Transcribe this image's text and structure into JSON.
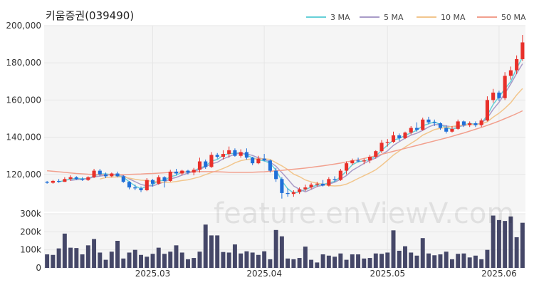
{
  "title": "키움증권(039490)",
  "watermark": "feature.enViewV.com",
  "colors": {
    "up": "#e8302a",
    "down": "#1f6fd8",
    "volume": "#454768",
    "ma3": "#66d0d8",
    "ma5": "#a99bc8",
    "ma10": "#f2c68d",
    "ma50": "#f2a08e"
  },
  "chart_data": {
    "type": "candlestick",
    "legend_position": "top-right",
    "price_axis": {
      "ylim": [
        100000,
        200000
      ],
      "ticks": [
        120000,
        140000,
        160000,
        180000,
        200000
      ],
      "tick_labels": [
        "120,000",
        "140,000",
        "160,000",
        "180,000",
        "200,000"
      ]
    },
    "volume_axis": {
      "ylim": [
        0,
        300000
      ],
      "ticks": [
        0,
        100000,
        200000,
        300000
      ],
      "tick_labels": [
        "0",
        "100k",
        "200k",
        "300k"
      ]
    },
    "x_ticks": [
      {
        "index": 18,
        "label": "2025.03"
      },
      {
        "index": 37,
        "label": "2025.04"
      },
      {
        "index": 58,
        "label": "2025.05"
      },
      {
        "index": 77,
        "label": "2025.06"
      }
    ],
    "legend": [
      {
        "label": "3 MA",
        "color": "#66d0d8",
        "key": "ma3"
      },
      {
        "label": "5 MA",
        "color": "#a99bc8",
        "key": "ma5"
      },
      {
        "label": "10 MA",
        "color": "#f2c68d",
        "key": "ma10"
      },
      {
        "label": "50 MA",
        "color": "#f2a08e",
        "key": "ma50"
      }
    ],
    "candles": [
      [
        116000,
        116500,
        115000,
        115500
      ],
      [
        115500,
        117000,
        115000,
        116500
      ],
      [
        116500,
        117500,
        115500,
        116000
      ],
      [
        116000,
        118500,
        116000,
        117500
      ],
      [
        117500,
        119500,
        116500,
        118500
      ],
      [
        118500,
        119000,
        117000,
        117500
      ],
      [
        117500,
        118500,
        116500,
        117000
      ],
      [
        117000,
        119000,
        116500,
        118500
      ],
      [
        118500,
        123000,
        118000,
        122000
      ],
      [
        122000,
        123000,
        119000,
        120000
      ],
      [
        120000,
        121000,
        118000,
        119000
      ],
      [
        119000,
        121000,
        118500,
        120500
      ],
      [
        120500,
        121500,
        118500,
        119000
      ],
      [
        119000,
        119500,
        115500,
        116000
      ],
      [
        116000,
        116500,
        112000,
        113000
      ],
      [
        113000,
        114500,
        111500,
        112500
      ],
      [
        112500,
        113500,
        110500,
        111500
      ],
      [
        111500,
        118000,
        111000,
        117000
      ],
      [
        117000,
        117500,
        113500,
        115000
      ],
      [
        115000,
        119500,
        114500,
        118500
      ],
      [
        118500,
        119000,
        113000,
        116500
      ],
      [
        116500,
        122500,
        116000,
        121500
      ],
      [
        121500,
        123000,
        119500,
        120500
      ],
      [
        120500,
        122500,
        119500,
        122000
      ],
      [
        122000,
        122500,
        120000,
        121000
      ],
      [
        121000,
        123500,
        119500,
        122500
      ],
      [
        122500,
        129000,
        121000,
        127000
      ],
      [
        127000,
        128000,
        123000,
        124000
      ],
      [
        124000,
        132000,
        123500,
        130500
      ],
      [
        130500,
        131500,
        128500,
        129500
      ],
      [
        129500,
        133000,
        128000,
        131000
      ],
      [
        131000,
        135000,
        129000,
        133000
      ],
      [
        133000,
        134000,
        129500,
        130000
      ],
      [
        130000,
        133500,
        129000,
        132000
      ],
      [
        132000,
        134000,
        128000,
        129000
      ],
      [
        129000,
        129500,
        125000,
        126000
      ],
      [
        126000,
        130000,
        125500,
        128500
      ],
      [
        128500,
        131000,
        127000,
        127500
      ],
      [
        127500,
        128000,
        121000,
        122000
      ],
      [
        122000,
        123500,
        116000,
        117500
      ],
      [
        117500,
        118500,
        107000,
        110000
      ],
      [
        110000,
        112500,
        108000,
        109500
      ],
      [
        109500,
        111500,
        108000,
        110500
      ],
      [
        110500,
        113000,
        109500,
        112000
      ],
      [
        112000,
        114500,
        111000,
        113000
      ],
      [
        113000,
        115500,
        112000,
        114500
      ],
      [
        114500,
        116000,
        113500,
        115000
      ],
      [
        115000,
        117000,
        113500,
        114000
      ],
      [
        114000,
        118500,
        113500,
        117500
      ],
      [
        117500,
        119000,
        116000,
        117000
      ],
      [
        117000,
        123000,
        116500,
        122000
      ],
      [
        122000,
        127000,
        120000,
        126000
      ],
      [
        126000,
        128500,
        125000,
        127500
      ],
      [
        127500,
        129000,
        126500,
        127000
      ],
      [
        127000,
        128500,
        125500,
        127500
      ],
      [
        127500,
        130500,
        126000,
        129500
      ],
      [
        129500,
        133000,
        128500,
        132500
      ],
      [
        132500,
        138500,
        131500,
        137000
      ],
      [
        137000,
        139000,
        135000,
        137500
      ],
      [
        137500,
        143000,
        137000,
        141000
      ],
      [
        141000,
        142000,
        138000,
        139500
      ],
      [
        139500,
        143000,
        139000,
        142500
      ],
      [
        142500,
        146000,
        141500,
        145000
      ],
      [
        145000,
        148000,
        143000,
        144000
      ],
      [
        144000,
        150500,
        143500,
        149500
      ],
      [
        149500,
        151000,
        147000,
        148000
      ],
      [
        148000,
        149500,
        146000,
        147500
      ],
      [
        147500,
        148000,
        144000,
        145000
      ],
      [
        145000,
        146500,
        142000,
        143000
      ],
      [
        143000,
        146000,
        142500,
        144500
      ],
      [
        144500,
        149500,
        144000,
        148500
      ],
      [
        148500,
        149000,
        145500,
        146500
      ],
      [
        146500,
        148500,
        145500,
        147500
      ],
      [
        147500,
        148500,
        145500,
        146500
      ],
      [
        146500,
        150000,
        145500,
        149000
      ],
      [
        149000,
        162000,
        148500,
        160000
      ],
      [
        160000,
        166000,
        158500,
        164000
      ],
      [
        164000,
        165000,
        159500,
        161000
      ],
      [
        161000,
        175000,
        160000,
        173000
      ],
      [
        173000,
        178000,
        171000,
        176000
      ],
      [
        176000,
        184000,
        174000,
        182000
      ],
      [
        182000,
        195000,
        181000,
        191000
      ]
    ],
    "volume": [
      75000,
      72000,
      108000,
      190000,
      112000,
      110000,
      75000,
      125000,
      160000,
      85000,
      45000,
      90000,
      150000,
      52000,
      85000,
      100000,
      72000,
      62000,
      78000,
      112000,
      78000,
      90000,
      125000,
      85000,
      48000,
      55000,
      90000,
      240000,
      180000,
      180000,
      88000,
      85000,
      130000,
      80000,
      92000,
      85000,
      72000,
      92000,
      48000,
      210000,
      175000,
      52000,
      48000,
      55000,
      118000,
      45000,
      30000,
      75000,
      68000,
      62000,
      80000,
      45000,
      75000,
      75000,
      52000,
      55000,
      80000,
      78000,
      85000,
      208000,
      95000,
      120000,
      85000,
      68000,
      165000,
      80000,
      70000,
      75000,
      90000,
      48000,
      78000,
      80000,
      58000,
      68000,
      48000,
      100000,
      290000,
      265000,
      260000,
      285000,
      170000,
      250000
    ],
    "moving_averages": {
      "ma3": [
        null,
        null,
        116000,
        116700,
        117500,
        117800,
        117700,
        117700,
        119200,
        120200,
        120300,
        119800,
        119500,
        118500,
        116000,
        113800,
        112300,
        113700,
        114500,
        116800,
        116700,
        118800,
        119500,
        121300,
        121200,
        121800,
        123500,
        124500,
        127200,
        128000,
        130300,
        131200,
        131300,
        131700,
        130300,
        129000,
        127800,
        127300,
        126000,
        122300,
        116500,
        112300,
        110000,
        110700,
        111800,
        113200,
        114200,
        114500,
        115500,
        116200,
        118800,
        121700,
        125200,
        126800,
        127300,
        128000,
        129800,
        133000,
        135700,
        138500,
        139300,
        141000,
        142300,
        143800,
        146200,
        147200,
        148300,
        146800,
        145200,
        144200,
        145300,
        146500,
        147500,
        146800,
        147500,
        151800,
        157700,
        161700,
        166000,
        170000,
        177000,
        183000
      ],
      "ma5": [
        null,
        null,
        null,
        null,
        116800,
        117200,
        117400,
        117700,
        118700,
        119100,
        119500,
        120000,
        120100,
        119300,
        117600,
        116100,
        114600,
        113900,
        113800,
        114900,
        116000,
        117600,
        118400,
        119600,
        120700,
        121500,
        122800,
        124100,
        125700,
        126500,
        128400,
        129600,
        130900,
        131500,
        131000,
        130200,
        128900,
        128200,
        126600,
        124400,
        121000,
        117500,
        113800,
        112000,
        110600,
        112000,
        113500,
        114200,
        114800,
        115800,
        117400,
        119400,
        122200,
        124000,
        125900,
        127600,
        128800,
        130700,
        132700,
        135600,
        137600,
        139500,
        141100,
        142200,
        143700,
        145500,
        146800,
        146800,
        146000,
        145600,
        145900,
        146200,
        147000,
        146700,
        147700,
        150300,
        155000,
        158800,
        163600,
        168700,
        174300,
        179500
      ],
      "ma10": [
        null,
        null,
        null,
        null,
        null,
        null,
        null,
        null,
        null,
        117500,
        118300,
        118500,
        118700,
        118600,
        118000,
        117400,
        116900,
        116700,
        116200,
        116000,
        115700,
        115800,
        116200,
        116700,
        117100,
        117900,
        118700,
        119900,
        121000,
        122000,
        123200,
        124600,
        126200,
        127400,
        128000,
        128300,
        128300,
        128400,
        128100,
        126300,
        124600,
        122600,
        120200,
        118800,
        117000,
        116000,
        115300,
        114800,
        114000,
        113800,
        114000,
        114800,
        116200,
        117800,
        119300,
        120800,
        122500,
        124900,
        127600,
        130400,
        132600,
        134700,
        136700,
        138700,
        141100,
        142600,
        144100,
        144800,
        145300,
        145800,
        146300,
        146600,
        147000,
        146800,
        147200,
        148300,
        150800,
        152900,
        155500,
        158600,
        162700,
        166200
      ],
      "ma50": [
        122000,
        121700,
        121400,
        121100,
        120800,
        120500,
        120300,
        120100,
        120000,
        119900,
        119800,
        119800,
        119800,
        119900,
        120000,
        120100,
        120200,
        120400,
        120500,
        120700,
        120900,
        121100,
        121200,
        121300,
        121400,
        121500,
        121500,
        121500,
        121500,
        121400,
        121300,
        121200,
        121100,
        121100,
        121100,
        121200,
        121300,
        121400,
        121700,
        121900,
        122200,
        122500,
        122800,
        123100,
        123400,
        123800,
        124200,
        124600,
        125100,
        125600,
        126100,
        126700,
        127300,
        127900,
        128600,
        129300,
        130000,
        130800,
        131600,
        132400,
        133200,
        134000,
        134800,
        135600,
        136400,
        137200,
        138000,
        138800,
        139600,
        140500,
        141400,
        142300,
        143300,
        144300,
        145300,
        146400,
        147500,
        148700,
        150000,
        151300,
        152700,
        154200
      ]
    }
  }
}
